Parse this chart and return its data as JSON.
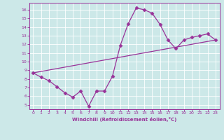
{
  "line1_x": [
    0,
    1,
    2,
    3,
    4,
    5,
    6,
    7,
    8,
    9,
    10,
    11,
    12,
    13,
    14,
    15,
    16,
    17,
    18,
    19,
    20,
    21,
    22,
    23
  ],
  "line1_y": [
    8.7,
    8.2,
    7.8,
    7.1,
    6.4,
    5.9,
    6.6,
    4.85,
    6.6,
    6.6,
    8.3,
    11.9,
    14.4,
    16.2,
    16.0,
    15.6,
    14.3,
    12.5,
    11.5,
    12.5,
    12.8,
    13.0,
    13.2,
    12.5
  ],
  "line2_x": [
    0,
    23
  ],
  "line2_y": [
    8.7,
    12.5
  ],
  "line_color": "#993399",
  "bg_color": "#cce8e8",
  "xlabel": "Windchill (Refroidissement éolien,°C)",
  "xlim": [
    -0.5,
    23.5
  ],
  "ylim": [
    4.5,
    16.8
  ],
  "yticks": [
    5,
    6,
    7,
    8,
    9,
    10,
    11,
    12,
    13,
    14,
    15,
    16
  ],
  "xticks": [
    0,
    1,
    2,
    3,
    4,
    5,
    6,
    7,
    8,
    9,
    10,
    11,
    12,
    13,
    14,
    15,
    16,
    17,
    18,
    19,
    20,
    21,
    22,
    23
  ],
  "grid_color": "#ffffff",
  "marker": "D",
  "markersize": 2.5,
  "linewidth": 0.9
}
